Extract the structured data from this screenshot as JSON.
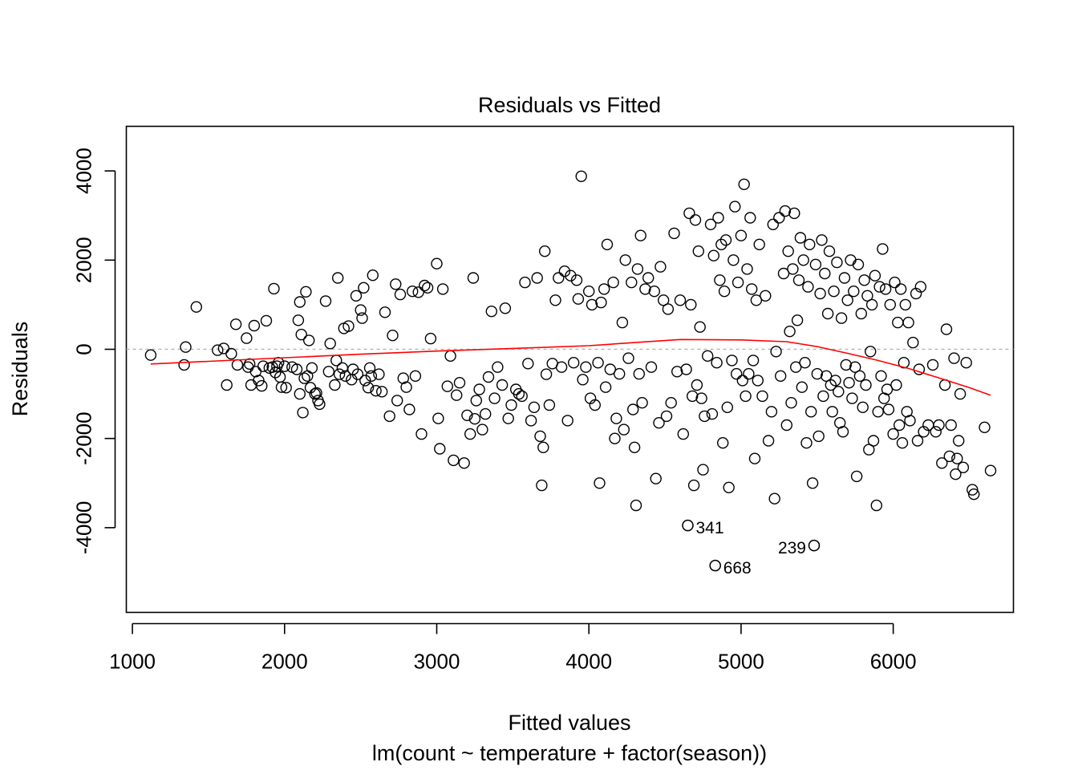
{
  "chart_data": {
    "type": "scatter",
    "title": "Residuals vs Fitted",
    "xlabel": "Fitted values",
    "subtitle": "lm(count ~ temperature + factor(season))",
    "ylabel": "Residuals",
    "xlim": [
      960,
      6790
    ],
    "ylim": [
      -5900,
      5000
    ],
    "xticks": [
      1000,
      2000,
      3000,
      4000,
      5000,
      6000
    ],
    "yticks": [
      -4000,
      -2000,
      0,
      2000,
      4000
    ],
    "grid": false,
    "reference_line": {
      "y": 0,
      "style": "dashed",
      "color": "#b3b3b3"
    },
    "point_color": "#000000",
    "smooth_color": "#ff0000",
    "smooth": {
      "x": [
        1120,
        1500,
        2000,
        2500,
        3000,
        3500,
        4000,
        4300,
        4600,
        5000,
        5300,
        5500,
        5700,
        5900,
        6100,
        6300,
        6500,
        6640
      ],
      "y": [
        -330,
        -270,
        -190,
        -110,
        -40,
        20,
        80,
        150,
        220,
        210,
        170,
        60,
        -90,
        -250,
        -430,
        -640,
        -860,
        -1030
      ]
    },
    "labeled_points": [
      {
        "label": "341",
        "x": 4650,
        "y": -3950
      },
      {
        "label": "668",
        "x": 4830,
        "y": -4850
      },
      {
        "label": "239",
        "x": 5480,
        "y": -4400
      }
    ],
    "points": [
      [
        1120,
        -130
      ],
      [
        1340,
        -350
      ],
      [
        1350,
        50
      ],
      [
        1420,
        950
      ],
      [
        1560,
        -20
      ],
      [
        1600,
        20
      ],
      [
        1620,
        -800
      ],
      [
        1650,
        -100
      ],
      [
        1680,
        560
      ],
      [
        1690,
        -350
      ],
      [
        1750,
        250
      ],
      [
        1760,
        -400
      ],
      [
        1770,
        -330
      ],
      [
        1780,
        -800
      ],
      [
        1800,
        530
      ],
      [
        1810,
        -500
      ],
      [
        1830,
        -700
      ],
      [
        1850,
        -820
      ],
      [
        1860,
        -380
      ],
      [
        1880,
        640
      ],
      [
        1900,
        -420
      ],
      [
        1920,
        -400
      ],
      [
        1930,
        1360
      ],
      [
        1940,
        -520
      ],
      [
        1950,
        -380
      ],
      [
        1960,
        -300
      ],
      [
        1970,
        -620
      ],
      [
        1980,
        -850
      ],
      [
        2000,
        -380
      ],
      [
        2010,
        -860
      ],
      [
        2050,
        -400
      ],
      [
        2080,
        -450
      ],
      [
        2090,
        650
      ],
      [
        2100,
        1060
      ],
      [
        2100,
        -1000
      ],
      [
        2110,
        330
      ],
      [
        2120,
        -1420
      ],
      [
        2130,
        -650
      ],
      [
        2140,
        1290
      ],
      [
        2150,
        -600
      ],
      [
        2160,
        200
      ],
      [
        2170,
        -860
      ],
      [
        2180,
        -420
      ],
      [
        2200,
        -1000
      ],
      [
        2210,
        -980
      ],
      [
        2220,
        -1150
      ],
      [
        2230,
        -1230
      ],
      [
        2270,
        1080
      ],
      [
        2290,
        -500
      ],
      [
        2300,
        130
      ],
      [
        2330,
        -800
      ],
      [
        2340,
        -250
      ],
      [
        2350,
        1600
      ],
      [
        2360,
        -560
      ],
      [
        2380,
        -420
      ],
      [
        2390,
        470
      ],
      [
        2400,
        -600
      ],
      [
        2420,
        520
      ],
      [
        2440,
        -680
      ],
      [
        2450,
        -450
      ],
      [
        2470,
        1200
      ],
      [
        2480,
        -560
      ],
      [
        2500,
        880
      ],
      [
        2510,
        700
      ],
      [
        2520,
        1380
      ],
      [
        2530,
        -700
      ],
      [
        2550,
        -860
      ],
      [
        2560,
        -420
      ],
      [
        2570,
        -600
      ],
      [
        2580,
        1660
      ],
      [
        2600,
        -930
      ],
      [
        2620,
        -560
      ],
      [
        2640,
        -950
      ],
      [
        2660,
        830
      ],
      [
        2690,
        -1500
      ],
      [
        2710,
        310
      ],
      [
        2730,
        1460
      ],
      [
        2740,
        -1150
      ],
      [
        2760,
        1230
      ],
      [
        2780,
        -650
      ],
      [
        2800,
        -850
      ],
      [
        2820,
        -1350
      ],
      [
        2840,
        1300
      ],
      [
        2860,
        -600
      ],
      [
        2880,
        1280
      ],
      [
        2900,
        -1900
      ],
      [
        2920,
        1430
      ],
      [
        2940,
        1380
      ],
      [
        2960,
        240
      ],
      [
        3000,
        1920
      ],
      [
        3010,
        -1550
      ],
      [
        3020,
        -2230
      ],
      [
        3040,
        1350
      ],
      [
        3070,
        -830
      ],
      [
        3090,
        -150
      ],
      [
        3110,
        -2490
      ],
      [
        3130,
        -1030
      ],
      [
        3150,
        -750
      ],
      [
        3180,
        -2550
      ],
      [
        3200,
        -1480
      ],
      [
        3220,
        -1900
      ],
      [
        3240,
        1600
      ],
      [
        3250,
        -1560
      ],
      [
        3260,
        -1150
      ],
      [
        3280,
        -900
      ],
      [
        3300,
        -1800
      ],
      [
        3320,
        -1450
      ],
      [
        3340,
        -620
      ],
      [
        3360,
        850
      ],
      [
        3380,
        -1100
      ],
      [
        3400,
        -400
      ],
      [
        3430,
        -800
      ],
      [
        3450,
        920
      ],
      [
        3470,
        -1550
      ],
      [
        3490,
        -1250
      ],
      [
        3520,
        -900
      ],
      [
        3540,
        -1000
      ],
      [
        3560,
        -1050
      ],
      [
        3580,
        1500
      ],
      [
        3600,
        -320
      ],
      [
        3620,
        -1600
      ],
      [
        3640,
        -1300
      ],
      [
        3660,
        1600
      ],
      [
        3680,
        -1950
      ],
      [
        3690,
        -3050
      ],
      [
        3700,
        -2200
      ],
      [
        3710,
        2200
      ],
      [
        3720,
        -560
      ],
      [
        3740,
        -1250
      ],
      [
        3760,
        -320
      ],
      [
        3780,
        1100
      ],
      [
        3800,
        1600
      ],
      [
        3820,
        -400
      ],
      [
        3840,
        1750
      ],
      [
        3860,
        -1600
      ],
      [
        3880,
        1650
      ],
      [
        3900,
        -300
      ],
      [
        3920,
        1550
      ],
      [
        3930,
        1130
      ],
      [
        3950,
        3880
      ],
      [
        3960,
        -680
      ],
      [
        3980,
        -400
      ],
      [
        4000,
        1300
      ],
      [
        4010,
        -1100
      ],
      [
        4020,
        1000
      ],
      [
        4040,
        -1250
      ],
      [
        4060,
        -300
      ],
      [
        4070,
        -3000
      ],
      [
        4080,
        1050
      ],
      [
        4100,
        1350
      ],
      [
        4110,
        -850
      ],
      [
        4120,
        2350
      ],
      [
        4140,
        -450
      ],
      [
        4160,
        1500
      ],
      [
        4170,
        -2000
      ],
      [
        4180,
        -1550
      ],
      [
        4200,
        -550
      ],
      [
        4220,
        600
      ],
      [
        4230,
        -1800
      ],
      [
        4240,
        2000
      ],
      [
        4260,
        -200
      ],
      [
        4280,
        1500
      ],
      [
        4290,
        -1350
      ],
      [
        4300,
        -2200
      ],
      [
        4310,
        -3500
      ],
      [
        4320,
        1800
      ],
      [
        4330,
        -550
      ],
      [
        4340,
        2550
      ],
      [
        4350,
        -1200
      ],
      [
        4370,
        1350
      ],
      [
        4390,
        1600
      ],
      [
        4410,
        -400
      ],
      [
        4430,
        1300
      ],
      [
        4440,
        -2900
      ],
      [
        4460,
        -1650
      ],
      [
        4470,
        1850
      ],
      [
        4490,
        1100
      ],
      [
        4510,
        -1500
      ],
      [
        4520,
        900
      ],
      [
        4540,
        -1200
      ],
      [
        4560,
        2600
      ],
      [
        4580,
        -500
      ],
      [
        4600,
        1100
      ],
      [
        4620,
        -1900
      ],
      [
        4640,
        -450
      ],
      [
        4650,
        -3950
      ],
      [
        4660,
        3050
      ],
      [
        4670,
        1000
      ],
      [
        4680,
        -1050
      ],
      [
        4690,
        -3050
      ],
      [
        4700,
        2900
      ],
      [
        4710,
        -800
      ],
      [
        4720,
        2200
      ],
      [
        4730,
        500
      ],
      [
        4740,
        -1100
      ],
      [
        4750,
        -2700
      ],
      [
        4760,
        -1500
      ],
      [
        4780,
        -150
      ],
      [
        4800,
        2800
      ],
      [
        4810,
        -1450
      ],
      [
        4820,
        2100
      ],
      [
        4830,
        -4850
      ],
      [
        4840,
        -300
      ],
      [
        4850,
        2950
      ],
      [
        4860,
        1550
      ],
      [
        4870,
        2350
      ],
      [
        4880,
        -2100
      ],
      [
        4890,
        1300
      ],
      [
        4900,
        2450
      ],
      [
        4910,
        -1300
      ],
      [
        4920,
        -3100
      ],
      [
        4940,
        -250
      ],
      [
        4950,
        2000
      ],
      [
        4960,
        3200
      ],
      [
        4970,
        -550
      ],
      [
        4980,
        1500
      ],
      [
        5000,
        2550
      ],
      [
        5010,
        -700
      ],
      [
        5020,
        3700
      ],
      [
        5030,
        -1050
      ],
      [
        5040,
        1800
      ],
      [
        5050,
        -550
      ],
      [
        5060,
        2950
      ],
      [
        5070,
        1350
      ],
      [
        5080,
        -250
      ],
      [
        5090,
        -2450
      ],
      [
        5100,
        1100
      ],
      [
        5110,
        -700
      ],
      [
        5120,
        2350
      ],
      [
        5140,
        -1050
      ],
      [
        5160,
        1200
      ],
      [
        5180,
        -2050
      ],
      [
        5200,
        -1400
      ],
      [
        5210,
        2800
      ],
      [
        5220,
        -3350
      ],
      [
        5230,
        -50
      ],
      [
        5250,
        2950
      ],
      [
        5260,
        -600
      ],
      [
        5280,
        1700
      ],
      [
        5290,
        3100
      ],
      [
        5300,
        -1700
      ],
      [
        5310,
        2200
      ],
      [
        5320,
        400
      ],
      [
        5330,
        -1200
      ],
      [
        5340,
        1800
      ],
      [
        5350,
        3050
      ],
      [
        5360,
        -400
      ],
      [
        5370,
        650
      ],
      [
        5380,
        1550
      ],
      [
        5390,
        2500
      ],
      [
        5400,
        -850
      ],
      [
        5410,
        2000
      ],
      [
        5420,
        -300
      ],
      [
        5430,
        -2100
      ],
      [
        5440,
        1400
      ],
      [
        5450,
        2350
      ],
      [
        5460,
        -1400
      ],
      [
        5470,
        -3000
      ],
      [
        5480,
        -4400
      ],
      [
        5490,
        1900
      ],
      [
        5500,
        -550
      ],
      [
        5510,
        -1950
      ],
      [
        5520,
        1250
      ],
      [
        5530,
        2450
      ],
      [
        5540,
        -1050
      ],
      [
        5550,
        1700
      ],
      [
        5560,
        -600
      ],
      [
        5570,
        800
      ],
      [
        5580,
        2200
      ],
      [
        5590,
        -800
      ],
      [
        5600,
        -1400
      ],
      [
        5610,
        1300
      ],
      [
        5620,
        -700
      ],
      [
        5630,
        1950
      ],
      [
        5640,
        -950
      ],
      [
        5650,
        -1650
      ],
      [
        5660,
        700
      ],
      [
        5670,
        -1850
      ],
      [
        5680,
        1600
      ],
      [
        5690,
        -350
      ],
      [
        5700,
        1100
      ],
      [
        5710,
        -750
      ],
      [
        5720,
        2000
      ],
      [
        5730,
        -1100
      ],
      [
        5740,
        1300
      ],
      [
        5750,
        -400
      ],
      [
        5760,
        -2850
      ],
      [
        5770,
        1900
      ],
      [
        5780,
        -600
      ],
      [
        5790,
        800
      ],
      [
        5800,
        -1300
      ],
      [
        5810,
        1550
      ],
      [
        5820,
        -800
      ],
      [
        5830,
        1200
      ],
      [
        5840,
        -2250
      ],
      [
        5850,
        -50
      ],
      [
        5860,
        1000
      ],
      [
        5870,
        -2050
      ],
      [
        5880,
        1650
      ],
      [
        5890,
        -3500
      ],
      [
        5900,
        -1400
      ],
      [
        5910,
        1400
      ],
      [
        5920,
        -600
      ],
      [
        5930,
        2250
      ],
      [
        5940,
        -1100
      ],
      [
        5950,
        1350
      ],
      [
        5960,
        -900
      ],
      [
        5970,
        -1350
      ],
      [
        5980,
        1000
      ],
      [
        6000,
        -1900
      ],
      [
        6010,
        1500
      ],
      [
        6020,
        -800
      ],
      [
        6030,
        600
      ],
      [
        6040,
        -1700
      ],
      [
        6050,
        1350
      ],
      [
        6060,
        -2100
      ],
      [
        6070,
        -300
      ],
      [
        6080,
        1000
      ],
      [
        6090,
        -1400
      ],
      [
        6100,
        600
      ],
      [
        6110,
        -1600
      ],
      [
        6130,
        150
      ],
      [
        6150,
        1250
      ],
      [
        6160,
        -2050
      ],
      [
        6170,
        -450
      ],
      [
        6180,
        1400
      ],
      [
        6200,
        -1850
      ],
      [
        6230,
        -1700
      ],
      [
        6260,
        -350
      ],
      [
        6280,
        -1850
      ],
      [
        6300,
        -1700
      ],
      [
        6320,
        -2550
      ],
      [
        6340,
        -800
      ],
      [
        6350,
        450
      ],
      [
        6370,
        -2400
      ],
      [
        6380,
        -1700
      ],
      [
        6400,
        -200
      ],
      [
        6410,
        -2800
      ],
      [
        6420,
        -2450
      ],
      [
        6430,
        -2050
      ],
      [
        6440,
        -1000
      ],
      [
        6460,
        -2650
      ],
      [
        6480,
        -300
      ],
      [
        6520,
        -3150
      ],
      [
        6530,
        -3250
      ],
      [
        6600,
        -1750
      ],
      [
        6640,
        -2720
      ]
    ]
  }
}
